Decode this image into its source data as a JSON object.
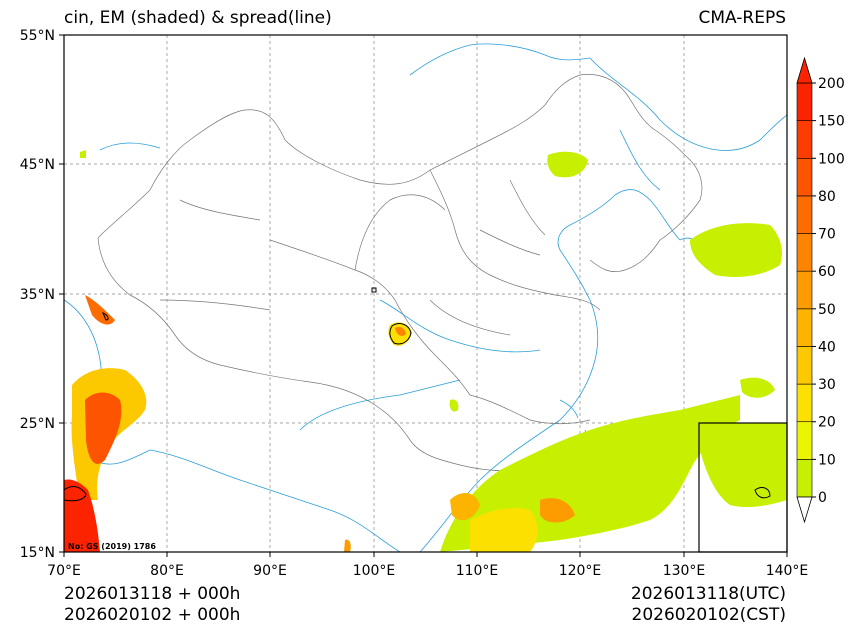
{
  "title": {
    "left": "cin, EM (shaded) & spread(line)",
    "right": "CMA-REPS"
  },
  "map": {
    "lat_labels": [
      "55°N",
      "45°N",
      "35°N",
      "25°N",
      "15°N"
    ],
    "lon_labels": [
      "70°E",
      "80°E",
      "90°E",
      "100°E",
      "110°E",
      "120°E",
      "130°E",
      "140°E"
    ],
    "extent": {
      "lon_min": 70,
      "lon_max": 140,
      "lat_min": 15,
      "lat_max": 55
    },
    "source_note": "No: GS (2019) 1786"
  },
  "colorbar": {
    "levels": [
      "0",
      "10",
      "20",
      "30",
      "40",
      "50",
      "60",
      "70",
      "80",
      "100",
      "150",
      "200"
    ],
    "colors": [
      "#c6f000",
      "#ecf500",
      "#fce000",
      "#fcc800",
      "#fcb400",
      "#fc9c00",
      "#fc8400",
      "#fc6c00",
      "#fc5400",
      "#fc3c00",
      "#fc2400"
    ]
  },
  "footer": {
    "left_line1": "2026013118  +  000h",
    "left_line2": "2026020102  +  000h",
    "right_line1": "2026013118(UTC)",
    "right_line2": "2026020102(CST)"
  }
}
